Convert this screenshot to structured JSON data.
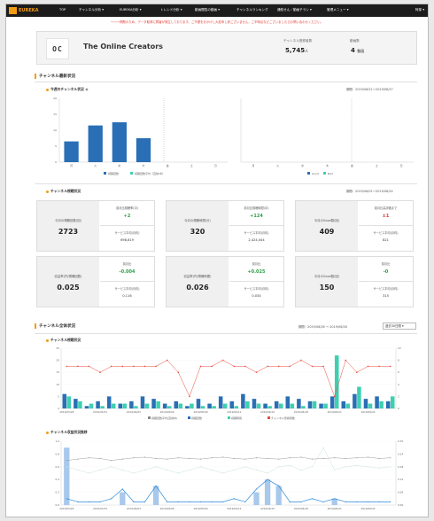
{
  "nav": {
    "logo": "EUREKA",
    "items": [
      "TOP",
      "チャンネル分析 ▾",
      "EUREKA分析 ▾",
      "トレンド分析 ▾",
      "動画閲覧の動画 ▾",
      "チャンネルランキング",
      "通知せん／動画チラシ ▾",
      "管理メニュー ▾"
    ],
    "user": "阿部 ▾"
  },
  "notice": "〜〜〜問題のため、データ取得に障害が発生しております。ご不便をおかけし大変申し訳ございません。ご不明点などございましたらお問い合わせください。",
  "channel": {
    "avatar_text": "OC",
    "name": "The Online Creators",
    "subs_label": "チャンネル登録者数",
    "subs_value": "5,745",
    "subs_unit": "人",
    "videos_label": "動画数",
    "videos_value": "4",
    "videos_unit": "動画"
  },
  "section1": {
    "title": "チャンネル最新状況",
    "chart1_title": "今週のチャンネル状況",
    "chart1_period": "期間：2019/06/21〜2019/06/27",
    "legend_a": "視聴回数",
    "legend_b": "視聴回数平均（直前/中）",
    "legend_good": "Good",
    "legend_bad": "Bad",
    "chart2_title": "チャンネル視聴状況",
    "chart2_period": "期間：2019/06/01〜2019/06/24"
  },
  "boxes": [
    {
      "left_label": "今月の視聴回数(回)",
      "left_value": "2723",
      "r_label": "前月比視聴率(中)",
      "r_value": "+2",
      "r_color": "green",
      "s_label": "サービス平均(月均)",
      "s_value": "698,819"
    },
    {
      "left_label": "今月の視聴時間(分)",
      "left_value": "320",
      "r_label": "前月比視聴時間(中)",
      "r_value": "+124",
      "r_color": "green",
      "s_label": "サービス平均(月均)",
      "s_value": "2,424,044"
    },
    {
      "left_label": "今月のGood数(回)",
      "left_value": "409",
      "r_label": "前月比高評価まで",
      "r_value": "±1",
      "r_color": "red",
      "s_label": "サービス平均(月均)",
      "s_value": "821"
    },
    {
      "left_label": "収益率(円/視聴回数)",
      "left_value": "0.025",
      "r_label": "前月比",
      "r_value": "-0.004",
      "r_color": "green",
      "s_label": "サービス平均(月均)",
      "s_value": "0.116"
    },
    {
      "left_label": "収益率(円/視聴時間)",
      "left_value": "0.026",
      "r_label": "前月比",
      "r_value": "+0.025",
      "r_color": "green",
      "s_label": "サービス平均(月均)",
      "s_value": "0.034"
    },
    {
      "left_label": "今月のGood数(回)",
      "left_value": "150",
      "r_label": "前月比",
      "r_value": "-0",
      "r_color": "green",
      "s_label": "サービス平均(月均)",
      "s_value": "315"
    }
  ],
  "section2": {
    "title": "チャンネル全体状況",
    "period": "期間：2019/06/26 〜 2019/06/26",
    "select": "過去30日間 ▾",
    "chart3_title": "チャンネル視聴状況",
    "chart3_legend": [
      "視聴回数平均(直前中)",
      "視聴回数",
      "視聴時間",
      "チャンネル登録者数"
    ],
    "chart4_title": "チャンネル収益状況推移"
  },
  "chart_data": [
    {
      "type": "bar",
      "categories": [
        "月",
        "火",
        "水",
        "木",
        "金",
        "土",
        "日"
      ],
      "series": [
        {
          "name": "視聴回数",
          "values": [
            6.5,
            11.5,
            12.5,
            7.5,
            0,
            0,
            0
          ]
        }
      ],
      "ylim": [
        0,
        20
      ],
      "colors": [
        "#2a6fb5"
      ]
    },
    {
      "type": "bar",
      "categories": [
        "月",
        "火",
        "水",
        "木",
        "金",
        "土",
        "日"
      ],
      "series": [
        {
          "name": "Good",
          "values": [
            0,
            0,
            0,
            0,
            0,
            0,
            0
          ]
        },
        {
          "name": "Bad",
          "values": [
            0,
            0,
            0,
            0,
            0,
            0,
            0
          ]
        }
      ]
    },
    {
      "type": "bar",
      "x": [
        "2019/05/28",
        "2019/05/29",
        "2019/05/30",
        "2019/05/31",
        "2019/06/01",
        "2019/06/02",
        "2019/06/03",
        "2019/06/04",
        "2019/06/05",
        "2019/06/06",
        "2019/06/07",
        "2019/06/08",
        "2019/06/09",
        "2019/06/10",
        "2019/06/11",
        "2019/06/12",
        "2019/06/13",
        "2019/06/14",
        "2019/06/15",
        "2019/06/16",
        "2019/06/17",
        "2019/06/18",
        "2019/06/19",
        "2019/06/20",
        "2019/06/21",
        "2019/06/22",
        "2019/06/23",
        "2019/06/24",
        "2019/06/25",
        "2019/06/26"
      ],
      "xticks": [
        "2019/05/28",
        "2019/05/31",
        "2019/06/03",
        "2019/06/06",
        "2019/06/09",
        "2019/06/12",
        "2019/06/15",
        "2019/06/18",
        "2019/06/21",
        "2019/06/24"
      ],
      "series": [
        {
          "name": "視聴回数",
          "type": "bar",
          "values": [
            6,
            4,
            1,
            3,
            5,
            2,
            3,
            5,
            4,
            2,
            3,
            1,
            4,
            2,
            5,
            3,
            6,
            4,
            2,
            3,
            5,
            4,
            3,
            2,
            5,
            3,
            6,
            4,
            5,
            3
          ]
        },
        {
          "name": "視聴時間",
          "type": "bar",
          "values": [
            5,
            3,
            2,
            1,
            2,
            2,
            1,
            2,
            3,
            1,
            2,
            2,
            1,
            1,
            2,
            1,
            3,
            2,
            1,
            2,
            2,
            1,
            3,
            2,
            22,
            2,
            9,
            2,
            3,
            5
          ]
        },
        {
          "name": "チャンネル登録者数",
          "type": "line",
          "values": [
            7,
            7,
            7,
            6,
            7,
            7,
            7,
            7,
            7,
            8,
            6,
            2,
            7,
            7,
            8,
            7,
            7,
            6,
            7,
            7,
            7,
            8,
            7,
            7,
            2,
            8,
            6,
            7,
            7,
            7
          ]
        }
      ],
      "ylim_left": [
        0,
        25
      ],
      "ylim_right": [
        0,
        10
      ],
      "colors": [
        "#2a6fb5",
        "#3ecfb0",
        "#e74c3c"
      ]
    },
    {
      "type": "line",
      "x": [
        "2019/05/28",
        "2019/05/29",
        "2019/05/30",
        "2019/05/31",
        "2019/06/01",
        "2019/06/02",
        "2019/06/03",
        "2019/06/04",
        "2019/06/05",
        "2019/06/06",
        "2019/06/07",
        "2019/06/08",
        "2019/06/09",
        "2019/06/10",
        "2019/06/11",
        "2019/06/12",
        "2019/06/13",
        "2019/06/14",
        "2019/06/15",
        "2019/06/16",
        "2019/06/17",
        "2019/06/18",
        "2019/06/19",
        "2019/06/20",
        "2019/06/21",
        "2019/06/22",
        "2019/06/23",
        "2019/06/24",
        "2019/06/25",
        "2019/06/26"
      ],
      "xticks": [
        "2019/05/28",
        "2019/05/31",
        "2019/06/03",
        "2019/06/06",
        "2019/06/09",
        "2019/06/12",
        "2019/06/15",
        "2019/06/18",
        "2019/06/21",
        "2019/06/24"
      ],
      "series": [
        {
          "name": "収益",
          "type": "bar",
          "values": [
            0.9,
            0,
            0,
            0,
            0,
            0.2,
            0,
            0,
            0.3,
            0,
            0,
            0,
            0,
            0,
            0,
            0,
            0,
            0.2,
            0.4,
            0.3,
            0,
            0,
            0,
            0,
            0.1,
            0,
            0,
            0,
            0,
            0
          ]
        },
        {
          "name": "収益率",
          "type": "line",
          "values": [
            0.1,
            0.05,
            0.05,
            0.05,
            0.1,
            0.25,
            0.05,
            0.05,
            0.3,
            0.05,
            0.05,
            0.05,
            0.05,
            0.05,
            0.05,
            0.1,
            0.05,
            0.25,
            0.4,
            0.3,
            0.05,
            0.05,
            0.1,
            0.05,
            0.1,
            0.05,
            0.05,
            0.05,
            0.05,
            0.05
          ]
        },
        {
          "name": "サービス平均",
          "type": "line",
          "values": [
            0.7,
            0.72,
            0.74,
            0.73,
            0.7,
            0.72,
            0.74,
            0.75,
            0.73,
            0.72,
            0.74,
            0.73,
            0.72,
            0.74,
            0.75,
            0.73,
            0.72,
            0.74,
            0.73,
            0.72,
            0.74,
            0.75,
            0.72,
            0.73,
            0.74,
            0.73,
            0.74,
            0.75,
            0.73,
            0.74
          ]
        },
        {
          "name": "前月",
          "type": "line",
          "values": [
            0.6,
            0.55,
            0.5,
            0.55,
            0.6,
            0.55,
            0.5,
            0.55,
            0.6,
            0.55,
            0.5,
            0.55,
            0.6,
            0.55,
            0.5,
            0.55,
            0.6,
            0.55,
            0.5,
            0.6,
            0.62,
            0.55,
            0.6,
            0.9,
            0.55,
            0.6,
            0.62,
            0.6,
            0.58,
            0.6
          ]
        }
      ],
      "ylim": [
        0,
        1
      ],
      "colors": [
        "#a8c8ec",
        "#2a8ad9",
        "#a0a0a0",
        "#cce4dc"
      ]
    }
  ]
}
